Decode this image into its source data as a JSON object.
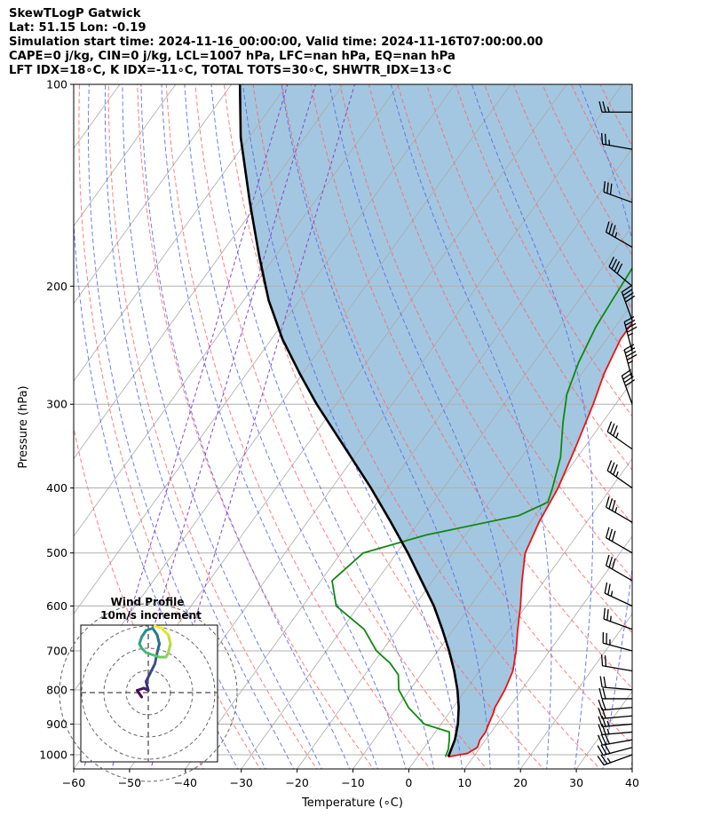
{
  "header": {
    "line1": "SkewTLogP Gatwick",
    "line2": "Lat: 51.15   Lon: -0.19",
    "line3": "Simulation start time: 2024-11-16_00:00:00, Valid time: 2024-11-16T07:00:00.00",
    "line4": "CAPE=0 j/kg, CIN=0 j/kg, LCL=1007 hPa, LFC=nan hPa, EQ=nan hPa",
    "line5": "LFT IDX=18∘C, K IDX=-11∘C, TOTAL TOTS=30∘C, SHWTR_IDX=13∘C"
  },
  "chart_data": {
    "type": "line",
    "subtype": "skewt-logp",
    "xlabel": "Temperature (∘C)",
    "ylabel": "Pressure (hPa)",
    "xlim": [
      -60,
      40
    ],
    "ylim": [
      1050,
      100
    ],
    "y_scale": "log",
    "x_ticks": [
      -60,
      -50,
      -40,
      -30,
      -20,
      -10,
      0,
      10,
      20,
      30,
      40
    ],
    "x_tick_labels": [
      "−60",
      "−50",
      "−40",
      "−30",
      "−20",
      "−10",
      "0",
      "10",
      "20",
      "30",
      "40"
    ],
    "y_ticks": [
      1000,
      900,
      800,
      700,
      600,
      500,
      400,
      300,
      200,
      100
    ],
    "y_tick_labels": [
      "1000",
      "900",
      "800",
      "700",
      "600",
      "500",
      "400",
      "300",
      "200",
      "100"
    ],
    "grid": true,
    "series": [
      {
        "name": "temperature",
        "color": "#ee1111",
        "points": [
          [
            5.5,
            1007
          ],
          [
            8.5,
            995
          ],
          [
            9.5,
            975
          ],
          [
            9.0,
            950
          ],
          [
            9.0,
            925
          ],
          [
            8.5,
            900
          ],
          [
            8.0,
            870
          ],
          [
            7.5,
            850
          ],
          [
            7.0,
            800
          ],
          [
            6.0,
            750
          ],
          [
            4.0,
            700
          ],
          [
            1.5,
            650
          ],
          [
            -1.0,
            600
          ],
          [
            -4.0,
            550
          ],
          [
            -7.0,
            500
          ],
          [
            -8.5,
            450
          ],
          [
            -9.5,
            400
          ],
          [
            -11.5,
            350
          ],
          [
            -14.0,
            300
          ],
          [
            -16.0,
            270
          ],
          [
            -17.5,
            240
          ],
          [
            -17.5,
            220
          ],
          [
            -17.0,
            200
          ],
          [
            -16.0,
            180
          ],
          [
            -14.0,
            160
          ],
          [
            -13.0,
            140
          ],
          [
            -13.0,
            120
          ],
          [
            -13.0,
            110
          ],
          [
            -12.5,
            100
          ]
        ]
      },
      {
        "name": "dewpoint",
        "color": "#118811",
        "points": [
          [
            5.0,
            1007
          ],
          [
            4.5,
            980
          ],
          [
            3.5,
            950
          ],
          [
            2.5,
            925
          ],
          [
            -3.0,
            900
          ],
          [
            -8.0,
            850
          ],
          [
            -12.0,
            800
          ],
          [
            -14.0,
            760
          ],
          [
            -17.0,
            730
          ],
          [
            -21.0,
            700
          ],
          [
            -26.0,
            650
          ],
          [
            -34.0,
            600
          ],
          [
            -38.0,
            550
          ],
          [
            -36.0,
            500
          ],
          [
            -27.0,
            470
          ],
          [
            -13.0,
            440
          ],
          [
            -9.5,
            420
          ],
          [
            -10.5,
            400
          ],
          [
            -13.0,
            360
          ],
          [
            -17.0,
            320
          ],
          [
            -20.0,
            290
          ],
          [
            -22.0,
            260
          ],
          [
            -23.5,
            230
          ],
          [
            -24.0,
            210
          ],
          [
            -24.5,
            190
          ],
          [
            -25.0,
            170
          ],
          [
            -27.0,
            160
          ],
          [
            -29.0,
            150
          ],
          [
            -28.0,
            135
          ],
          [
            -26.0,
            120
          ],
          [
            -23.0,
            100
          ]
        ]
      },
      {
        "name": "parcel",
        "color": "#000000",
        "points": [
          [
            5.5,
            1007
          ],
          [
            4.5,
            950
          ],
          [
            3.0,
            900
          ],
          [
            1.0,
            850
          ],
          [
            -1.5,
            800
          ],
          [
            -4.5,
            750
          ],
          [
            -8.0,
            700
          ],
          [
            -12.0,
            650
          ],
          [
            -16.5,
            600
          ],
          [
            -22.0,
            550
          ],
          [
            -28.0,
            500
          ],
          [
            -35.0,
            450
          ],
          [
            -43.0,
            400
          ],
          [
            -52.5,
            350
          ],
          [
            -63.5,
            300
          ],
          [
            -70.5,
            270
          ],
          [
            -78.0,
            240
          ],
          [
            -85.5,
            210
          ],
          [
            -93.0,
            180
          ],
          [
            -101.5,
            150
          ],
          [
            -111.5,
            120
          ],
          [
            -118.5,
            100
          ]
        ]
      }
    ],
    "wind_barbs": [
      {
        "p": 1000,
        "speed_kt": 25,
        "dir": 250
      },
      {
        "p": 975,
        "speed_kt": 30,
        "dir": 255
      },
      {
        "p": 950,
        "speed_kt": 30,
        "dir": 260
      },
      {
        "p": 925,
        "speed_kt": 25,
        "dir": 265
      },
      {
        "p": 900,
        "speed_kt": 25,
        "dir": 265
      },
      {
        "p": 875,
        "speed_kt": 20,
        "dir": 265
      },
      {
        "p": 850,
        "speed_kt": 20,
        "dir": 265
      },
      {
        "p": 825,
        "speed_kt": 20,
        "dir": 270
      },
      {
        "p": 800,
        "speed_kt": 20,
        "dir": 275
      },
      {
        "p": 750,
        "speed_kt": 20,
        "dir": 280
      },
      {
        "p": 700,
        "speed_kt": 25,
        "dir": 285
      },
      {
        "p": 650,
        "speed_kt": 25,
        "dir": 290
      },
      {
        "p": 600,
        "speed_kt": 25,
        "dir": 295
      },
      {
        "p": 550,
        "speed_kt": 30,
        "dir": 300
      },
      {
        "p": 500,
        "speed_kt": 30,
        "dir": 300
      },
      {
        "p": 450,
        "speed_kt": 35,
        "dir": 300
      },
      {
        "p": 400,
        "speed_kt": 35,
        "dir": 305
      },
      {
        "p": 350,
        "speed_kt": 35,
        "dir": 305
      },
      {
        "p": 300,
        "speed_kt": 40,
        "dir": 340
      },
      {
        "p": 275,
        "speed_kt": 45,
        "dir": 345
      },
      {
        "p": 250,
        "speed_kt": 45,
        "dir": 345
      },
      {
        "p": 225,
        "speed_kt": 40,
        "dir": 340
      },
      {
        "p": 200,
        "speed_kt": 40,
        "dir": 310
      },
      {
        "p": 175,
        "speed_kt": 35,
        "dir": 300
      },
      {
        "p": 150,
        "speed_kt": 30,
        "dir": 290
      },
      {
        "p": 125,
        "speed_kt": 25,
        "dir": 280
      },
      {
        "p": 110,
        "speed_kt": 25,
        "dir": 270
      }
    ],
    "hodograph": {
      "title_line1": "Wind Profile",
      "title_line2": "10m/s increment",
      "ring_spacing_ms": 10,
      "points": [
        [
          -3,
          -2
        ],
        [
          -5,
          1
        ],
        [
          -2,
          2
        ],
        [
          0,
          1
        ],
        [
          -1,
          5
        ],
        [
          1,
          9
        ],
        [
          3,
          13
        ],
        [
          4,
          18
        ],
        [
          5,
          22
        ],
        [
          4,
          26
        ],
        [
          2,
          29
        ],
        [
          -1,
          28
        ],
        [
          -3,
          25
        ],
        [
          -4,
          22
        ],
        [
          -3,
          20
        ],
        [
          -1,
          18
        ],
        [
          2,
          17
        ],
        [
          5,
          16
        ],
        [
          8,
          16
        ],
        [
          9,
          18
        ],
        [
          10,
          22
        ],
        [
          9,
          26
        ],
        [
          6,
          29
        ],
        [
          3,
          30
        ]
      ]
    },
    "colors": {
      "shade": "#a3c7e0",
      "isotherm": "#aaaaaa",
      "dry_adiabat": "#ff6666",
      "moist_adiabat": "#5566ee",
      "mixing_ratio": "#8844cc"
    }
  }
}
